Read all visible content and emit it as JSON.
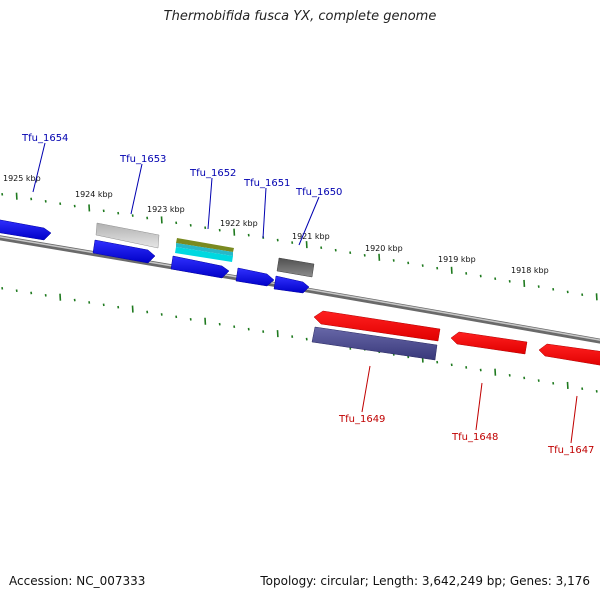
{
  "title": "Thermobifida fusca YX, complete genome",
  "accession": "Accession: NC_007333",
  "summary": "Topology: circular; Length: 3,642,249 bp; Genes: 3,176",
  "colors": {
    "backbone": "#8a8a8a",
    "ticks": "#1f7a1f",
    "forward_label": "#0000b0",
    "reverse_label": "#c00000"
  },
  "kbp_labels": [
    "1925 kbp",
    "1924 kbp",
    "1923 kbp",
    "1922 kbp",
    "1921 kbp",
    "1920 kbp",
    "1919 kbp",
    "1918 kbp"
  ],
  "genes": [
    {
      "name": "Tfu_1654",
      "strand": "forward"
    },
    {
      "name": "Tfu_1653",
      "strand": "forward"
    },
    {
      "name": "Tfu_1652",
      "strand": "forward"
    },
    {
      "name": "Tfu_1651",
      "strand": "forward"
    },
    {
      "name": "Tfu_1650",
      "strand": "forward"
    },
    {
      "name": "Tfu_1649",
      "strand": "reverse"
    },
    {
      "name": "Tfu_1648",
      "strand": "reverse"
    },
    {
      "name": "Tfu_1647",
      "strand": "reverse"
    }
  ]
}
